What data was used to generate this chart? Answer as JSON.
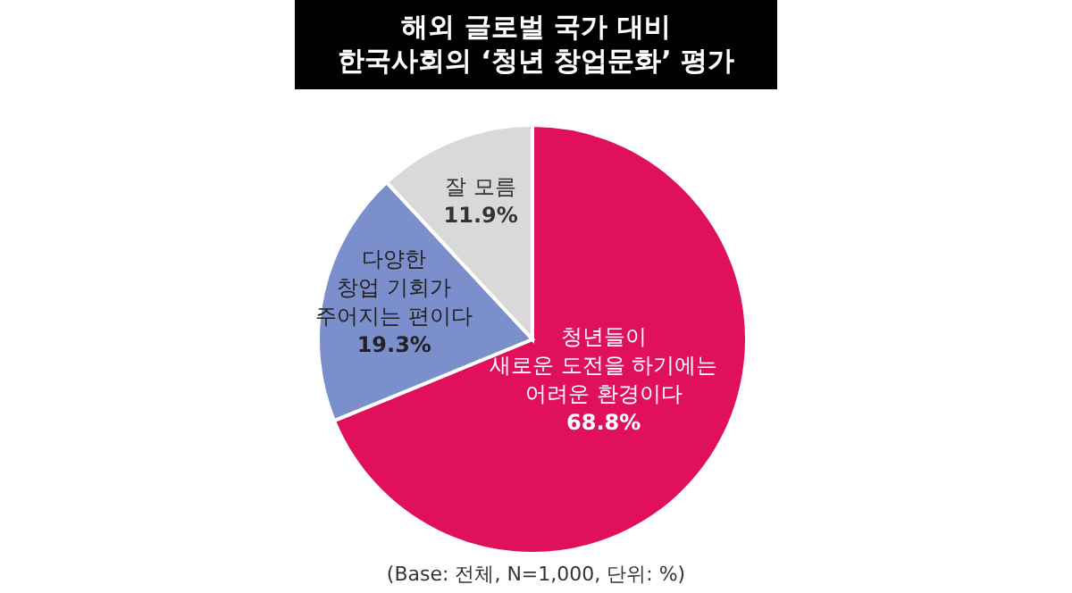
{
  "chart_data": {
    "type": "pie",
    "title": "해외 글로벌 국가 대비\n한국사회의 ‘청년 창업문화’ 평가",
    "categories": [
      "청년들이\n새로운 도전을 하기에는\n어려운 환경이다",
      "다양한\n창업 기회가\n주어지는 편이다",
      "잘 모름"
    ],
    "values": [
      68.8,
      19.3,
      11.9
    ],
    "colors": [
      "#e0105c",
      "#7a8fcc",
      "#d9d9d9"
    ],
    "value_labels": [
      "68.8%",
      "19.3%",
      "11.9%"
    ],
    "annotations": [
      "(Base: 전체, N=1,000, 단위: %)"
    ]
  }
}
